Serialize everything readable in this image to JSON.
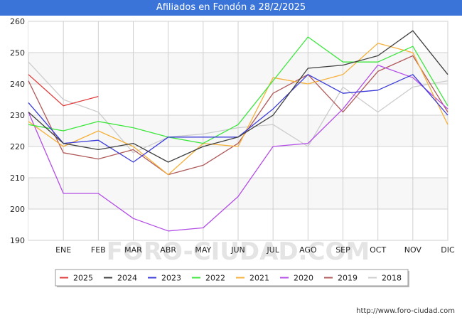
{
  "header": {
    "title": "Afiliados en Fondón a 28/2/2025"
  },
  "footer": {
    "url": "http://www.foro-ciudad.com"
  },
  "watermark": "FORO-CIUDAD.COM",
  "chart_data": {
    "type": "line",
    "title": "Afiliados en Fondón a 28/2/2025",
    "categories": [
      "",
      "ENE",
      "FEB",
      "MAR",
      "ABR",
      "MAY",
      "JUN",
      "JUL",
      "AGO",
      "SEP",
      "OCT",
      "NOV",
      "DIC"
    ],
    "ylim": [
      190,
      260
    ],
    "yticks": [
      190,
      200,
      210,
      220,
      230,
      240,
      250,
      260
    ],
    "grid": true,
    "legend_position": "bottom",
    "series": [
      {
        "name": "2025",
        "color": "#e03b3b",
        "values": [
          243,
          233,
          236,
          null,
          null,
          null,
          null,
          null,
          null,
          null,
          null,
          null,
          null
        ]
      },
      {
        "name": "2024",
        "color": "#404040",
        "values": [
          231,
          221,
          219,
          221,
          215,
          220,
          223,
          230,
          245,
          246,
          249,
          257,
          243
        ]
      },
      {
        "name": "2023",
        "color": "#3b3bd9",
        "values": [
          234,
          221,
          222,
          215,
          223,
          223,
          223,
          232,
          243,
          237,
          238,
          243,
          230
        ]
      },
      {
        "name": "2022",
        "color": "#3ee63e",
        "values": [
          227,
          225,
          228,
          226,
          223,
          221,
          227,
          241,
          255,
          247,
          247,
          252,
          233
        ]
      },
      {
        "name": "2021",
        "color": "#f5b13b",
        "values": [
          228,
          220,
          225,
          220,
          211,
          221,
          220,
          242,
          240,
          243,
          253,
          250,
          227
        ]
      },
      {
        "name": "2020",
        "color": "#b34de6",
        "values": [
          231,
          205,
          205,
          197,
          193,
          194,
          204,
          220,
          221,
          232,
          246,
          242,
          232
        ]
      },
      {
        "name": "2019",
        "color": "#b05a5a",
        "values": [
          241,
          218,
          216,
          219,
          211,
          214,
          221,
          237,
          243,
          231,
          244,
          249,
          231
        ]
      },
      {
        "name": "2018",
        "color": "#cccccc",
        "values": [
          247,
          235,
          231,
          218,
          223,
          224,
          226,
          227,
          220,
          239,
          231,
          239,
          241
        ]
      }
    ]
  }
}
